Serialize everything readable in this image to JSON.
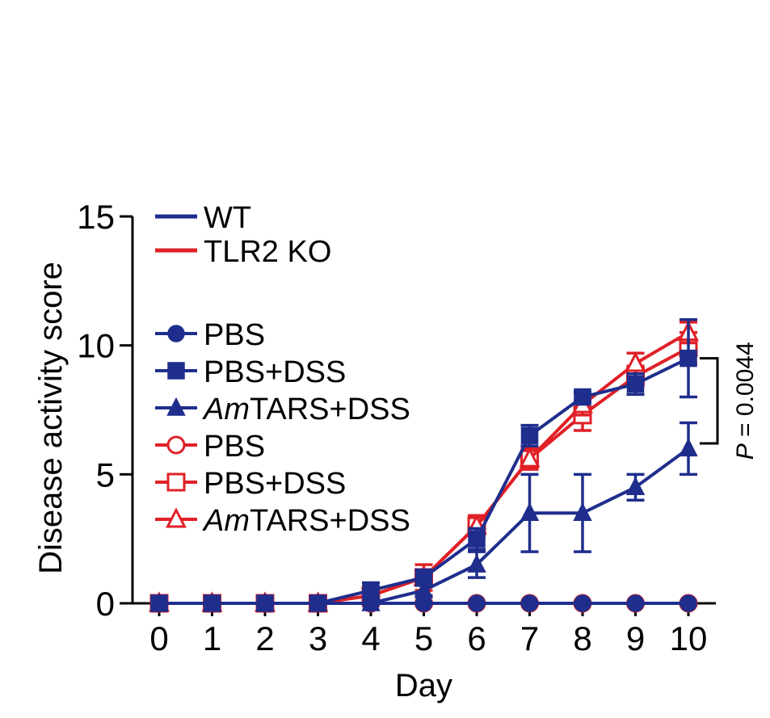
{
  "chart_data": {
    "type": "line",
    "title": "",
    "xlabel": "Day",
    "ylabel": "Disease activity score",
    "xlim": [
      0,
      10
    ],
    "ylim": [
      0,
      15
    ],
    "x_ticks": [
      "0",
      "1",
      "2",
      "3",
      "4",
      "5",
      "6",
      "7",
      "8",
      "9",
      "10"
    ],
    "y_ticks": [
      "0",
      "5",
      "10",
      "15"
    ],
    "x": [
      0,
      1,
      2,
      3,
      4,
      5,
      6,
      7,
      8,
      9,
      10
    ],
    "grid": false,
    "legend_position": "top-left",
    "genotype_legend": [
      {
        "label": "WT",
        "color": "#1f2e8c"
      },
      {
        "label": "TLR2 KO",
        "color": "#e02027"
      }
    ],
    "series": [
      {
        "name": "PBS",
        "prefix": "",
        "suffix": "PBS",
        "genotype": "WT",
        "marker": "circle",
        "filled": true,
        "color": "#1f2e8c",
        "values": [
          0,
          0,
          0,
          0,
          0,
          0,
          0,
          0,
          0,
          0,
          0
        ],
        "errors": [
          0,
          0,
          0,
          0,
          0,
          0,
          0,
          0,
          0,
          0,
          0
        ]
      },
      {
        "name": "PBS+DSS",
        "prefix": "",
        "suffix": "PBS+DSS",
        "genotype": "WT",
        "marker": "square",
        "filled": true,
        "color": "#1f2e8c",
        "values": [
          0,
          0,
          0,
          0,
          0.5,
          1,
          2.5,
          6.5,
          8,
          8.5,
          9.5
        ],
        "errors": [
          0,
          0,
          0,
          0,
          0.3,
          0.3,
          0.4,
          0.4,
          0.2,
          0.4,
          1.5
        ]
      },
      {
        "name": "AmTARS+DSS",
        "prefix": "Am",
        "suffix": "TARS+DSS",
        "genotype": "WT",
        "marker": "triangle",
        "filled": true,
        "color": "#1f2e8c",
        "values": [
          0,
          0,
          0,
          0,
          0,
          0.5,
          1.5,
          3.5,
          3.5,
          4.5,
          6
        ],
        "errors": [
          0,
          0,
          0,
          0,
          0,
          0.2,
          0.5,
          1.5,
          1.5,
          0.5,
          1
        ]
      },
      {
        "name": "PBS",
        "prefix": "",
        "suffix": "PBS",
        "genotype": "TLR2 KO",
        "marker": "circle",
        "filled": false,
        "color": "#e02027",
        "values": [
          0,
          0,
          0,
          0,
          0,
          0,
          0,
          0,
          0,
          0,
          0
        ],
        "errors": [
          0,
          0,
          0,
          0,
          0,
          0,
          0,
          0,
          0,
          0,
          0
        ]
      },
      {
        "name": "PBS+DSS",
        "prefix": "",
        "suffix": "PBS+DSS",
        "genotype": "TLR2 KO",
        "marker": "square",
        "filled": false,
        "color": "#e02027",
        "values": [
          0,
          0,
          0,
          0,
          0.3,
          1,
          3,
          5.6,
          7.3,
          8.8,
          9.9
        ],
        "errors": [
          0,
          0,
          0,
          0,
          0.3,
          0.5,
          0.4,
          0.4,
          0.6,
          0.4,
          0.6
        ]
      },
      {
        "name": "AmTARS+DSS",
        "prefix": "Am",
        "suffix": "TARS+DSS",
        "genotype": "TLR2 KO",
        "marker": "triangle",
        "filled": false,
        "color": "#e02027",
        "values": [
          0,
          0,
          0,
          0,
          0.3,
          1,
          3,
          5.6,
          7.7,
          9.3,
          10.5
        ],
        "errors": [
          0,
          0,
          0,
          0,
          0.3,
          0.3,
          0.4,
          0.4,
          0.4,
          0.4,
          0.4
        ]
      }
    ],
    "annotation": {
      "prefix": "P",
      "text": " = 0.0044",
      "from_series": 1,
      "to_series": 2,
      "at_x": 10,
      "top_value": 9.5,
      "bottom_value": 6.2
    }
  }
}
